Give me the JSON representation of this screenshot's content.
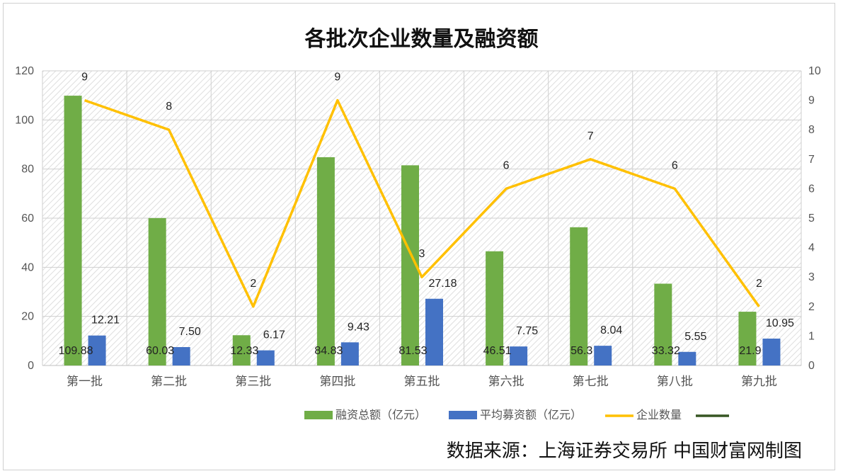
{
  "chart_data": {
    "type": "bar",
    "title": "各批次企业数量及融资额",
    "source_note": "数据来源：上海证券交易所 中国财富网制图",
    "categories": [
      "第一批",
      "第二批",
      "第三批",
      "第四批",
      "第五批",
      "第六批",
      "第七批",
      "第八批",
      "第九批"
    ],
    "series": [
      {
        "name": "融资总额（亿元）",
        "kind": "bar",
        "axis": "left",
        "color": "#70ad47",
        "values": [
          109.88,
          60.03,
          12.33,
          84.83,
          81.53,
          46.51,
          56.3,
          33.32,
          21.9
        ],
        "labels": [
          "109.88",
          "60.03",
          "12.33",
          "84.83",
          "81.53",
          "46.51",
          "56.3",
          "33.32",
          "21.9"
        ]
      },
      {
        "name": "平均募资额（亿元）",
        "kind": "bar",
        "axis": "left",
        "color": "#4472c4",
        "values": [
          12.21,
          7.5,
          6.17,
          9.43,
          27.18,
          7.75,
          8.04,
          5.55,
          10.95
        ],
        "labels": [
          "12.21",
          "7.50",
          "6.17",
          "9.43",
          "27.18",
          "7.75",
          "8.04",
          "5.55",
          "10.95"
        ]
      },
      {
        "name": "企业数量",
        "kind": "line",
        "axis": "right",
        "color": "#ffc000",
        "values": [
          9,
          8,
          2,
          9,
          3,
          6,
          7,
          6,
          2
        ],
        "labels": [
          "9",
          "8",
          "2",
          "9",
          "3",
          "6",
          "7",
          "6",
          "2"
        ]
      }
    ],
    "extra_legend_color": "#375623",
    "y_left": {
      "min": 0,
      "max": 120,
      "ticks": [
        "0",
        "20",
        "40",
        "60",
        "80",
        "100",
        "120"
      ]
    },
    "y_right": {
      "min": 0,
      "max": 10,
      "ticks": [
        "0",
        "1",
        "2",
        "3",
        "4",
        "5",
        "6",
        "7",
        "8",
        "9",
        "10"
      ]
    },
    "grid": true,
    "legend_position": "bottom"
  }
}
